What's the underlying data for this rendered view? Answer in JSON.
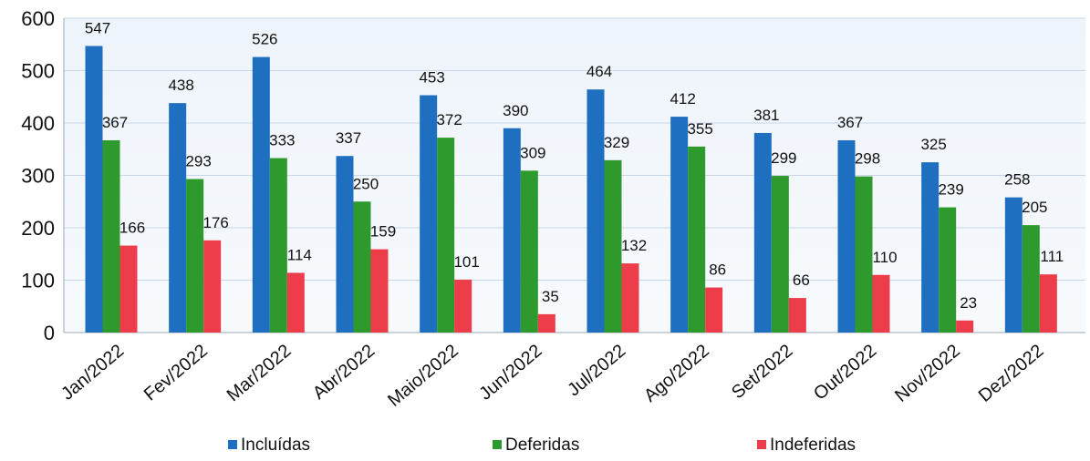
{
  "chart_data": {
    "type": "bar",
    "categories": [
      "Jan/2022",
      "Fev/2022",
      "Mar/2022",
      "Abr/2022",
      "Maio/2022",
      "Jun/2022",
      "Jul/2022",
      "Ago/2022",
      "Set/2022",
      "Out/2022",
      "Nov/2022",
      "Dez/2022"
    ],
    "series": [
      {
        "name": "Incluídas",
        "color": "#1f6fc0",
        "values": [
          547,
          438,
          526,
          337,
          453,
          390,
          464,
          412,
          381,
          367,
          325,
          258
        ]
      },
      {
        "name": "Deferidas",
        "color": "#2e9a2e",
        "values": [
          367,
          293,
          333,
          250,
          372,
          309,
          329,
          355,
          299,
          298,
          239,
          205
        ]
      },
      {
        "name": "Indeferidas",
        "color": "#ee3d4a",
        "values": [
          166,
          176,
          114,
          159,
          101,
          35,
          132,
          86,
          66,
          110,
          23,
          111
        ]
      }
    ],
    "ylim": [
      0,
      600
    ],
    "yticks": [
      0,
      100,
      200,
      300,
      400,
      500,
      600
    ],
    "grid": true,
    "legend": "bottom",
    "title": "",
    "xlabel": "",
    "ylabel": ""
  }
}
